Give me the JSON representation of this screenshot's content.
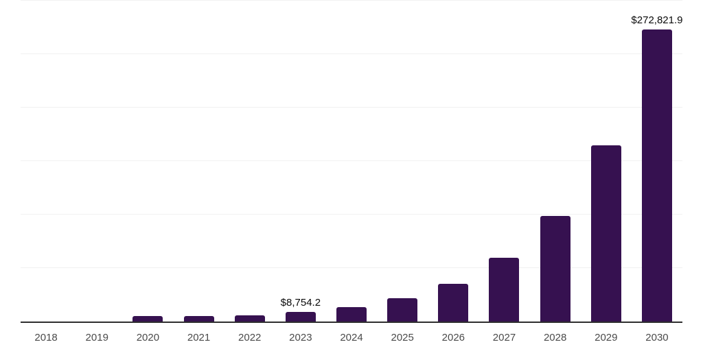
{
  "chart": {
    "background_color": "#ffffff",
    "bar_color": "#361150",
    "gridline_color": "#f1f1f1",
    "axis_color": "#2e2e2e",
    "tick_label_color": "#4a4a4a",
    "value_label_color": "#0a0a0a"
  },
  "chart_data": {
    "type": "bar",
    "title": "",
    "xlabel": "",
    "ylabel": "",
    "categories": [
      "2018",
      "2019",
      "2020",
      "2021",
      "2022",
      "2023",
      "2024",
      "2025",
      "2026",
      "2027",
      "2028",
      "2029",
      "2030"
    ],
    "values": [
      250,
      400,
      5100,
      5000,
      5800,
      8754.2,
      13200,
      21800,
      35600,
      59700,
      98800,
      164900,
      272821.9
    ],
    "data_labels": [
      "",
      "",
      "",
      "",
      "",
      "$8,754.2",
      "",
      "",
      "",
      "",
      "",
      "",
      "$272,821.9"
    ],
    "ylim": [
      0,
      300000
    ],
    "gridline_step": 50000,
    "grid": true,
    "legend": false,
    "y_axis_tick_labels_visible": false
  }
}
